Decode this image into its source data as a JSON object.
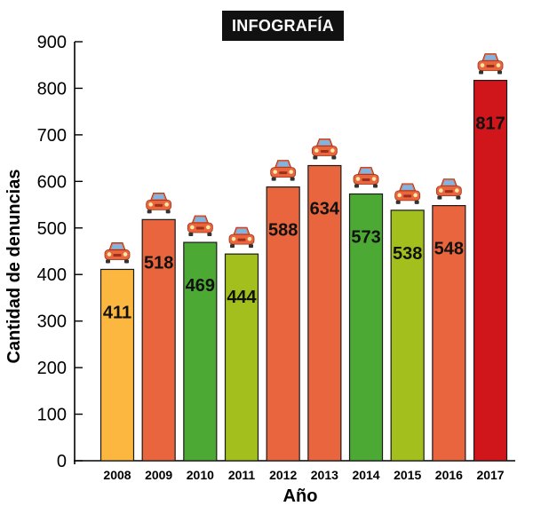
{
  "badge": "INFOGRAFÍA",
  "chart_data": {
    "type": "bar",
    "title": "",
    "xlabel": "Año",
    "ylabel": "Cantidad de denuncias",
    "ylim": [
      0,
      900
    ],
    "yticks": [
      0,
      100,
      200,
      300,
      400,
      500,
      600,
      700,
      800,
      900
    ],
    "grid": false,
    "categories": [
      "2008",
      "2009",
      "2010",
      "2011",
      "2012",
      "2013",
      "2014",
      "2015",
      "2016",
      "2017"
    ],
    "values": [
      411,
      518,
      469,
      444,
      588,
      634,
      573,
      538,
      548,
      817
    ],
    "colors": [
      "#FBB73F",
      "#E9653D",
      "#4CA934",
      "#A2BF1D",
      "#E9653D",
      "#E9653D",
      "#4CA934",
      "#A2BF1D",
      "#E9653D",
      "#D0151B"
    ],
    "marker_icon": "car-icon"
  }
}
